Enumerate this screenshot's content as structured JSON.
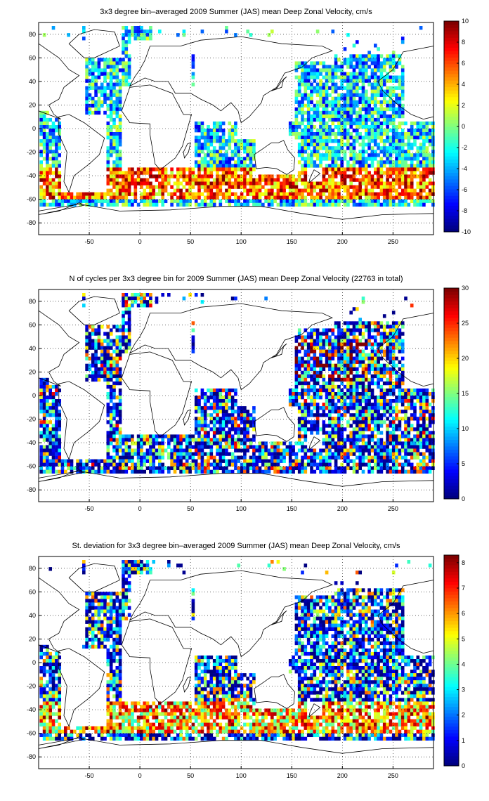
{
  "panels": [
    {
      "title": "3x3 degree bin–averaged 2009 Summer (JAS) mean Deep Zonal Velocity, cm/s",
      "colorbar": {
        "min": -10,
        "max": 10,
        "ticks": [
          10,
          8,
          6,
          4,
          2,
          0,
          -2,
          -4,
          -6,
          -8,
          -10
        ]
      },
      "field": "velocity"
    },
    {
      "title": "N of cycles per 3x3 degree bin for 2009 Summer (JAS) mean Deep Zonal Velocity (22763 in total)",
      "colorbar": {
        "min": 0,
        "max": 30,
        "ticks": [
          30,
          25,
          20,
          15,
          10,
          5,
          0
        ]
      },
      "field": "count"
    },
    {
      "title": "St. deviation for 3x3 degree bin–averaged 2009 Summer (JAS) mean Deep Zonal Velocity, cm/s",
      "colorbar": {
        "min": 0,
        "max": 8.3,
        "ticks": [
          8,
          7,
          6,
          5,
          4,
          3,
          2,
          1,
          0
        ]
      },
      "field": "stdev"
    }
  ],
  "axes": {
    "xticks": [
      -50,
      0,
      50,
      100,
      150,
      200,
      250
    ],
    "yticks": [
      80,
      60,
      40,
      20,
      0,
      -20,
      -40,
      -60,
      -80
    ],
    "xlim": [
      -100,
      290
    ],
    "ylim": [
      -90,
      90
    ],
    "grid": "dotted"
  },
  "colormap": "jet"
}
